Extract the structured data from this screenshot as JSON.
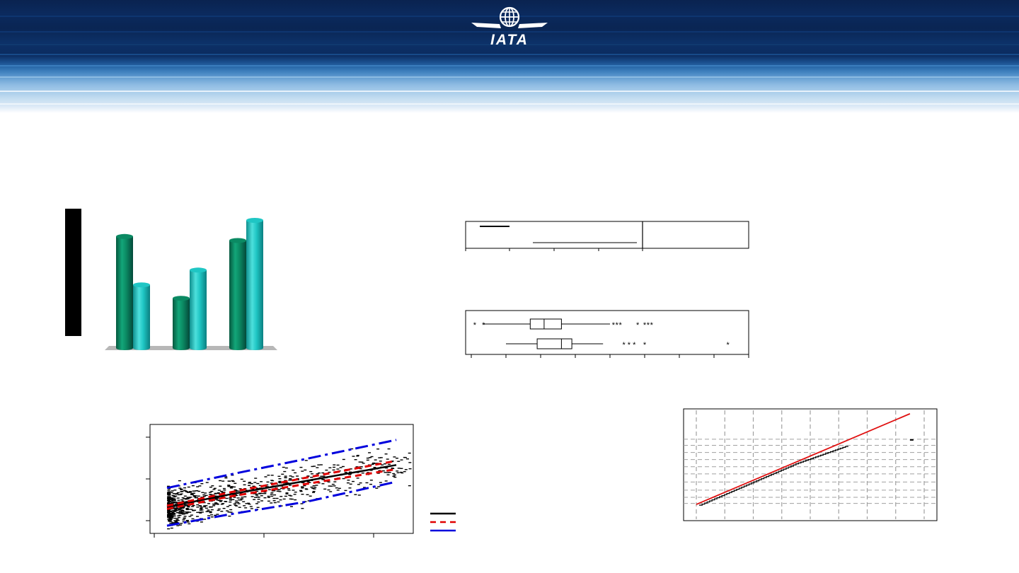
{
  "banner": {
    "logo_text": "IATA",
    "colors": {
      "navy": "#0a2553",
      "light": "#a9cdea"
    }
  },
  "bar_chart": {
    "chart_data": {
      "type": "bar",
      "categories": [
        "",
        "",
        ""
      ],
      "series": [
        {
          "color": "#0b8a63",
          "values": [
            83,
            37,
            80
          ]
        },
        {
          "color": "#1fc6c4",
          "values": [
            47,
            58,
            95
          ]
        }
      ],
      "ylim": [
        0,
        100
      ],
      "legend": "none"
    }
  },
  "box_plots": {
    "top_panel": {
      "type": "table",
      "color": "#000000"
    },
    "bottom_panel": {
      "chart_data": {
        "type": "box",
        "xlim": [
          0,
          8
        ],
        "boxes": [
          {
            "whisker_low": 0.35,
            "q1": 1.7,
            "median": 2.1,
            "q3": 2.6,
            "whisker_high": 4.0,
            "outliers": [
              0.1,
              0.35,
              4.1,
              4.2,
              4.3,
              4.8,
              5.0,
              5.1,
              5.2
            ]
          },
          {
            "whisker_low": 1.0,
            "q1": 1.9,
            "median": 2.6,
            "q3": 2.9,
            "whisker_high": 3.8,
            "outliers": [
              4.4,
              4.55,
              4.7,
              5.0,
              7.4
            ]
          }
        ]
      }
    }
  },
  "scatter_plot": {
    "chart_data": {
      "type": "scatter",
      "xlim": [
        0,
        10
      ],
      "ylim": [
        0,
        10
      ],
      "lines": [
        {
          "style": "solid",
          "color": "#000000",
          "points": [
            [
              0.5,
              2.4
            ],
            [
              3,
              3.6
            ],
            [
              6,
              4.9
            ],
            [
              9.5,
              6.4
            ]
          ]
        },
        {
          "style": "dashed",
          "color": "#e00000",
          "points": [
            [
              0.5,
              2.5
            ],
            [
              3,
              3.8
            ],
            [
              6,
              5.2
            ],
            [
              9.5,
              6.8
            ]
          ]
        },
        {
          "style": "dashed",
          "color": "#e00000",
          "points": [
            [
              0.5,
              2.2
            ],
            [
              3,
              3.4
            ],
            [
              6,
              4.6
            ],
            [
              9.5,
              6.0
            ]
          ]
        },
        {
          "style": "dashdot",
          "color": "#0000dd",
          "points": [
            [
              0.5,
              4.2
            ],
            [
              3,
              5.5
            ],
            [
              6,
              7.0
            ],
            [
              9.5,
              8.8
            ]
          ]
        },
        {
          "style": "dashdot",
          "color": "#0000dd",
          "points": [
            [
              0.5,
              0.6
            ],
            [
              3,
              1.7
            ],
            [
              6,
              2.9
            ],
            [
              9.5,
              4.8
            ]
          ]
        }
      ],
      "legend": "right",
      "legend_colors": [
        "#000000",
        "#e00000",
        "#0000dd"
      ]
    }
  },
  "prob_plot": {
    "chart_data": {
      "type": "line",
      "xlim": [
        0,
        8
      ],
      "ylim": [
        0,
        10
      ],
      "fit_line": {
        "color": "#e01010",
        "points": [
          [
            0,
            0.9
          ],
          [
            7.5,
            9.8
          ]
        ]
      },
      "points_color": "#000000"
    }
  }
}
